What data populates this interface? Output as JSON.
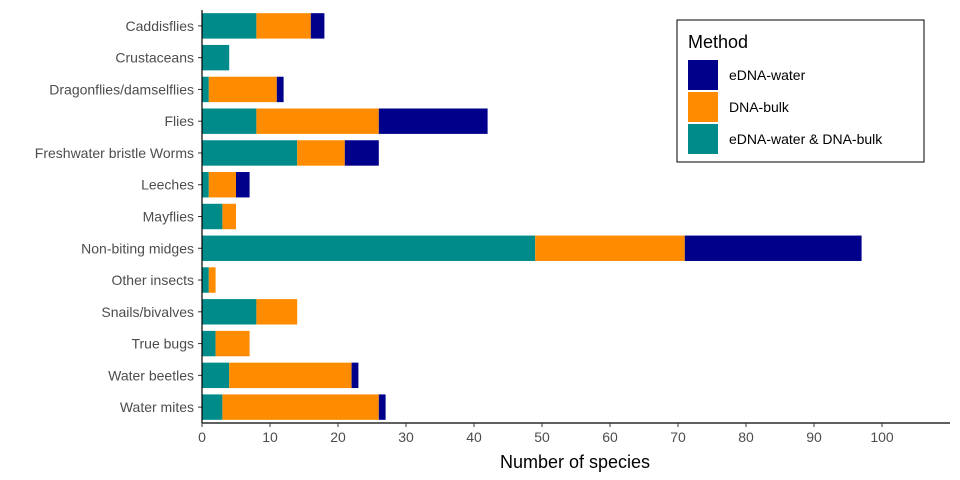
{
  "chart_data": {
    "type": "bar",
    "orientation": "horizontal",
    "stacked": true,
    "categories": [
      "Caddisflies",
      "Crustaceans",
      "Dragonflies/damselflies",
      "Flies",
      "Freshwater bristle Worms",
      "Leeches",
      "Mayflies",
      "Non-biting midges",
      "Other insects",
      "Snails/bivalves",
      "True bugs",
      "Water beetles",
      "Water mites"
    ],
    "series": [
      {
        "name": "eDNA-water & DNA-bulk",
        "color": "#008B8B",
        "values": [
          8,
          4,
          1,
          8,
          14,
          1,
          3,
          49,
          1,
          8,
          2,
          4,
          3
        ]
      },
      {
        "name": "DNA-bulk",
        "color": "#FF8C00",
        "values": [
          8,
          0,
          10,
          18,
          7,
          4,
          2,
          22,
          1,
          6,
          5,
          18,
          23
        ]
      },
      {
        "name": "eDNA-water",
        "color": "#00008B",
        "values": [
          2,
          0,
          1,
          16,
          5,
          2,
          0,
          26,
          0,
          0,
          0,
          1,
          1
        ]
      }
    ],
    "xlabel": "Number of species",
    "ylabel": "",
    "xlim": [
      0,
      110
    ],
    "xticks": [
      0,
      10,
      20,
      30,
      40,
      50,
      60,
      70,
      80,
      90,
      100
    ],
    "grid": false,
    "legend": {
      "title": "Method",
      "position": "top-right",
      "order": [
        "eDNA-water",
        "DNA-bulk",
        "eDNA-water & DNA-bulk"
      ]
    }
  }
}
